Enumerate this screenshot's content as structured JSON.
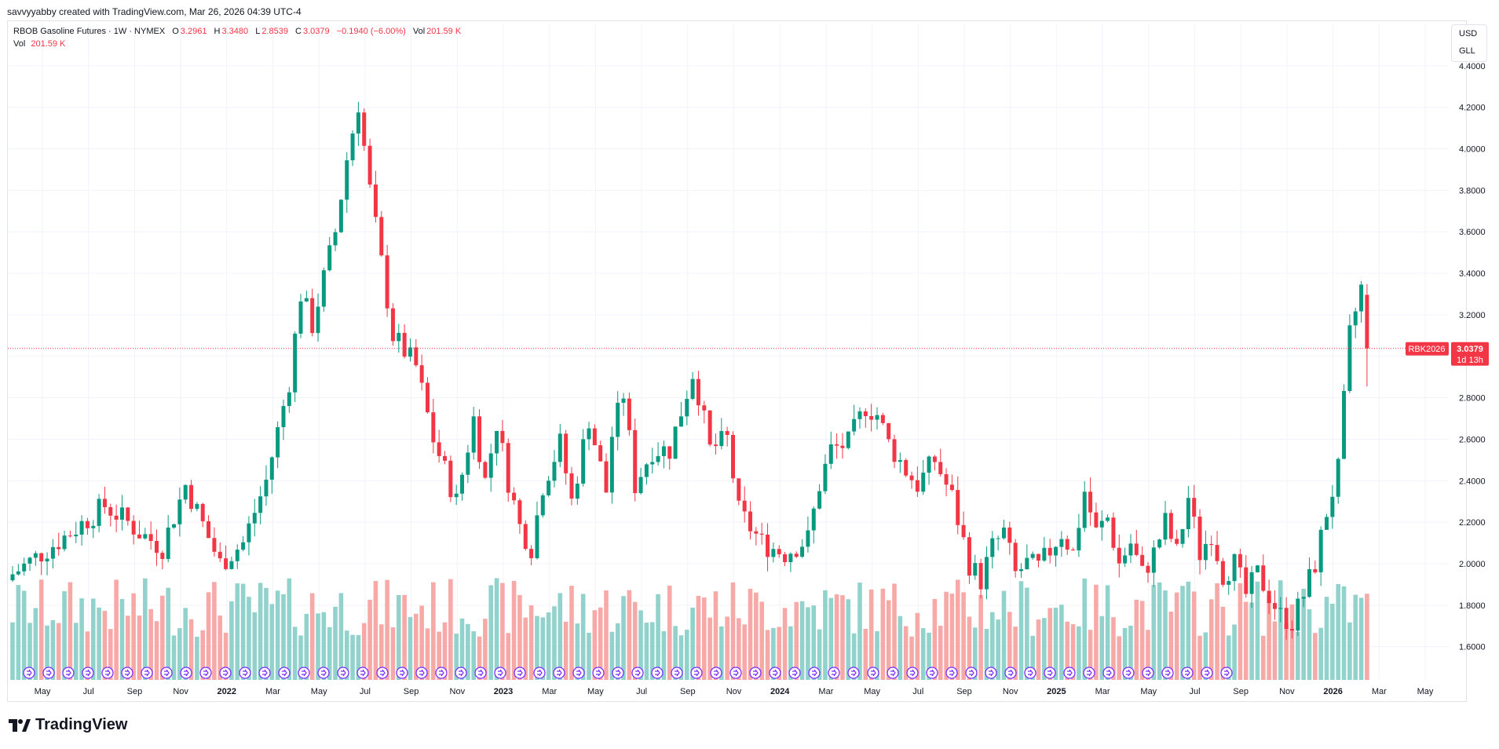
{
  "header": {
    "credit": "savvyyabby created with TradingView.com, Mar 26, 2026 04:39 UTC-4"
  },
  "legend": {
    "symbol": "RBOB Gasoline Futures · 1W · NYMEX",
    "o_label": "O",
    "o_value": "3.2961",
    "h_label": "H",
    "h_value": "3.3480",
    "l_label": "L",
    "l_value": "2.8539",
    "c_label": "C",
    "c_value": "3.0379",
    "change": "−0.1940 (−6.00%)",
    "vol_label": "Vol",
    "vol_value": "201.59 K",
    "vol_line_label": "Vol",
    "vol_line_value": "201.59 K"
  },
  "units": {
    "currency": "USD",
    "unit": "GLL"
  },
  "price_badge": {
    "symbol": "RBK2026",
    "price": "3.0379",
    "countdown": "1d 13h"
  },
  "logo": {
    "text": "TradingView"
  },
  "colors": {
    "up": "#089981",
    "down": "#f23645",
    "up_vol": "#92d2cc",
    "down_vol": "#f7a9a7",
    "event": "#7b2cff",
    "grid": "#f0f3fa"
  },
  "chart_data": {
    "type": "candlestick",
    "title": "RBOB Gasoline Futures · 1W · NYMEX",
    "ylim": [
      1.44,
      4.46
    ],
    "y_ticks": [
      "4.4000",
      "4.2000",
      "4.0000",
      "3.8000",
      "3.6000",
      "3.4000",
      "3.2000",
      "3.0000",
      "2.8000",
      "2.6000",
      "2.4000",
      "2.2000",
      "2.0000",
      "1.8000",
      "1.6000"
    ],
    "x_ticks": [
      {
        "label": "May",
        "bold": false
      },
      {
        "label": "Jul",
        "bold": false
      },
      {
        "label": "Sep",
        "bold": false
      },
      {
        "label": "Nov",
        "bold": false
      },
      {
        "label": "2022",
        "bold": true
      },
      {
        "label": "Mar",
        "bold": false
      },
      {
        "label": "May",
        "bold": false
      },
      {
        "label": "Jul",
        "bold": false
      },
      {
        "label": "Sep",
        "bold": false
      },
      {
        "label": "Nov",
        "bold": false
      },
      {
        "label": "2023",
        "bold": true
      },
      {
        "label": "Mar",
        "bold": false
      },
      {
        "label": "May",
        "bold": false
      },
      {
        "label": "Jul",
        "bold": false
      },
      {
        "label": "Sep",
        "bold": false
      },
      {
        "label": "Nov",
        "bold": false
      },
      {
        "label": "2024",
        "bold": true
      },
      {
        "label": "Mar",
        "bold": false
      },
      {
        "label": "May",
        "bold": false
      },
      {
        "label": "Jul",
        "bold": false
      },
      {
        "label": "Sep",
        "bold": false
      },
      {
        "label": "Nov",
        "bold": false
      },
      {
        "label": "2025",
        "bold": true
      },
      {
        "label": "Mar",
        "bold": false
      },
      {
        "label": "May",
        "bold": false
      },
      {
        "label": "Jul",
        "bold": false
      },
      {
        "label": "Sep",
        "bold": false
      },
      {
        "label": "Nov",
        "bold": false
      },
      {
        "label": "2026",
        "bold": true
      },
      {
        "label": "Mar",
        "bold": false
      },
      {
        "label": "May",
        "bold": false
      }
    ],
    "last_price": 3.0379,
    "anchors": [
      [
        0,
        1.95
      ],
      [
        5,
        2.05
      ],
      [
        10,
        2.15
      ],
      [
        16,
        2.28
      ],
      [
        20,
        2.2
      ],
      [
        22,
        2.15
      ],
      [
        26,
        2.08
      ],
      [
        30,
        2.38
      ],
      [
        36,
        2.0
      ],
      [
        40,
        2.1
      ],
      [
        44,
        2.4
      ],
      [
        48,
        2.88
      ],
      [
        50,
        3.3
      ],
      [
        52,
        3.15
      ],
      [
        56,
        3.6
      ],
      [
        58,
        3.95
      ],
      [
        60,
        4.22
      ],
      [
        62,
        3.8
      ],
      [
        66,
        3.1
      ],
      [
        70,
        2.95
      ],
      [
        73,
        2.6
      ],
      [
        77,
        2.3
      ],
      [
        80,
        2.7
      ],
      [
        82,
        2.4
      ],
      [
        84,
        2.68
      ],
      [
        86,
        2.4
      ],
      [
        88,
        2.18
      ],
      [
        90,
        2.08
      ],
      [
        92,
        2.38
      ],
      [
        95,
        2.58
      ],
      [
        97,
        2.3
      ],
      [
        100,
        2.7
      ],
      [
        103,
        2.35
      ],
      [
        104,
        2.62
      ],
      [
        106,
        2.82
      ],
      [
        108,
        2.38
      ],
      [
        111,
        2.55
      ],
      [
        114,
        2.55
      ],
      [
        118,
        2.92
      ],
      [
        119,
        2.82
      ],
      [
        121,
        2.55
      ],
      [
        124,
        2.6
      ],
      [
        126,
        2.25
      ],
      [
        130,
        2.1
      ],
      [
        134,
        2.05
      ],
      [
        138,
        2.12
      ],
      [
        140,
        2.38
      ],
      [
        142,
        2.55
      ],
      [
        145,
        2.58
      ],
      [
        148,
        2.76
      ],
      [
        150,
        2.72
      ],
      [
        152,
        2.58
      ],
      [
        155,
        2.45
      ],
      [
        157,
        2.38
      ],
      [
        160,
        2.5
      ],
      [
        163,
        2.32
      ],
      [
        166,
        2.0
      ],
      [
        168,
        1.92
      ],
      [
        170,
        2.08
      ],
      [
        172,
        2.15
      ],
      [
        174,
        1.95
      ],
      [
        176,
        2.0
      ],
      [
        178,
        1.98
      ],
      [
        182,
        2.15
      ],
      [
        184,
        2.05
      ],
      [
        186,
        2.35
      ],
      [
        188,
        2.15
      ],
      [
        190,
        2.22
      ],
      [
        192,
        2.0
      ],
      [
        194,
        2.1
      ],
      [
        196,
        1.95
      ],
      [
        198,
        2.05
      ],
      [
        200,
        2.2
      ],
      [
        202,
        2.05
      ],
      [
        204,
        2.32
      ],
      [
        206,
        2.05
      ],
      [
        208,
        2.15
      ],
      [
        210,
        1.95
      ],
      [
        212,
        2.0
      ],
      [
        214,
        1.85
      ],
      [
        216,
        1.95
      ],
      [
        218,
        1.85
      ],
      [
        220,
        1.75
      ],
      [
        222,
        1.72
      ],
      [
        224,
        1.85
      ],
      [
        226,
        2.0
      ],
      [
        228,
        2.25
      ],
      [
        230,
        2.45
      ],
      [
        232,
        3.1
      ],
      [
        234,
        3.33
      ],
      [
        235,
        3.04
      ]
    ]
  }
}
